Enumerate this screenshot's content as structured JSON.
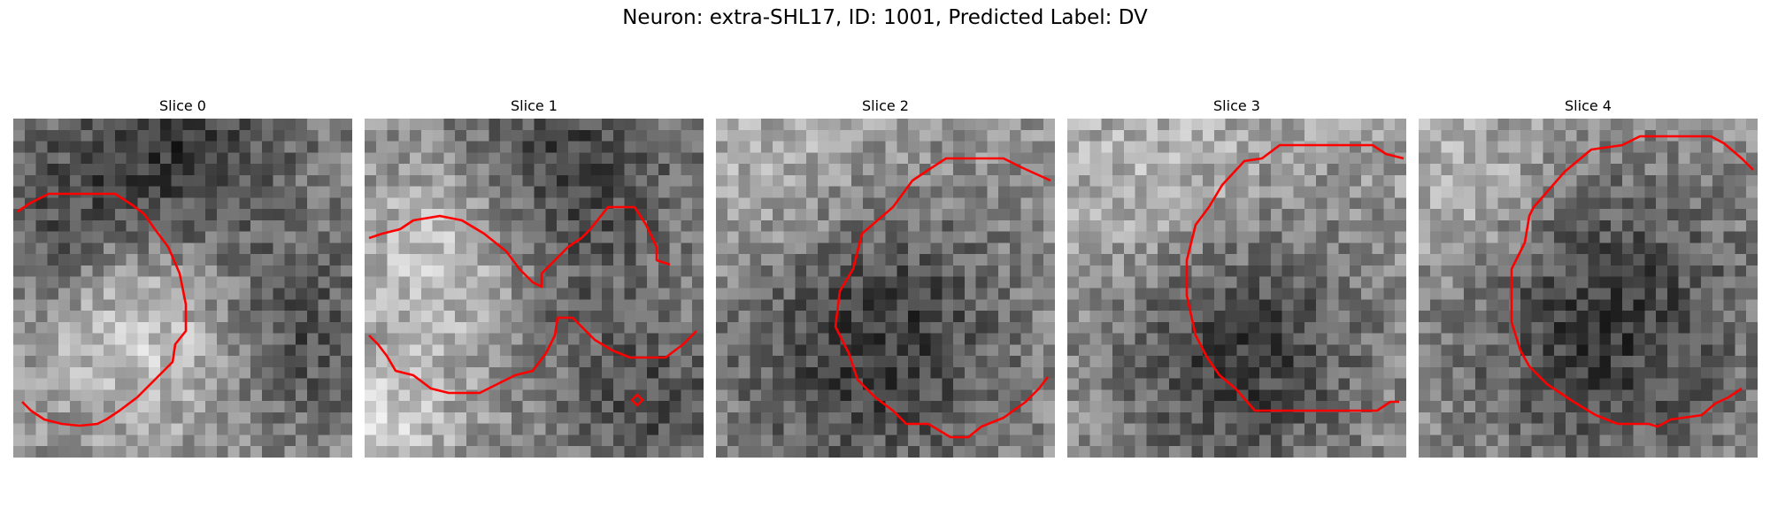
{
  "figure_title": "Neuron: extra-SHL17, ID: 1001, Predicted Label: DV",
  "panels": [
    {
      "title": "Slice 0"
    },
    {
      "title": "Slice 1"
    },
    {
      "title": "Slice 2"
    },
    {
      "title": "Slice 3"
    },
    {
      "title": "Slice 4"
    }
  ],
  "colors": {
    "contour": "#ff0000",
    "background": "#ffffff"
  }
}
